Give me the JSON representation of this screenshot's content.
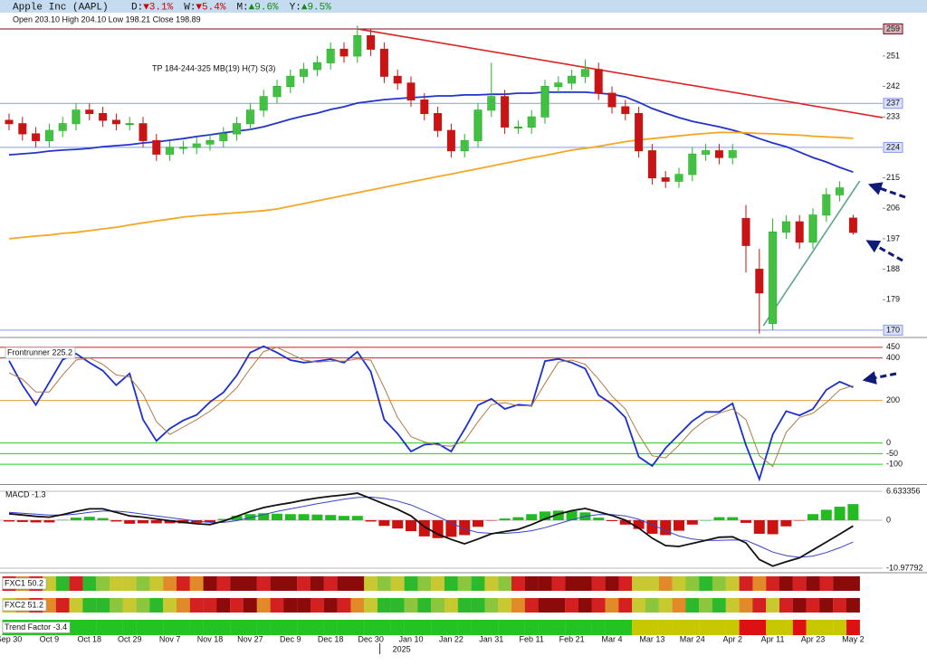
{
  "header": {
    "title": "Apple Inc (AAPL)",
    "changes": [
      {
        "label": "D:",
        "value": "▼3.1%",
        "color": "#cc0000"
      },
      {
        "label": "W:",
        "value": "▼5.4%",
        "color": "#cc0000"
      },
      {
        "label": "M:",
        "value": "▲9.6%",
        "color": "#118811"
      },
      {
        "label": "Y:",
        "value": "▲9.5%",
        "color": "#118811"
      }
    ]
  },
  "chart_data": [
    {
      "type": "candlestick",
      "info": "Open 203.10 High 204.10 Low 198.21 Close 198.89",
      "annotation": "TP 184-244-325 MB(19) H(7) S(3)",
      "year_label": "2025",
      "categories": [
        "Sep 30",
        null,
        null,
        "Oct 9",
        null,
        null,
        "Oct 18",
        null,
        null,
        "Oct 29",
        null,
        null,
        "Nov 7",
        null,
        null,
        "Nov 18",
        null,
        null,
        "Nov 27",
        null,
        null,
        "Dec 9",
        null,
        null,
        "Dec 18",
        null,
        null,
        "Dec 30",
        null,
        null,
        "Jan 10",
        null,
        null,
        "Jan 22",
        null,
        null,
        "Jan 31",
        null,
        null,
        "Feb 11",
        null,
        null,
        "Feb 21",
        null,
        null,
        "Mar 4",
        null,
        null,
        "Mar 13",
        null,
        null,
        "Mar 24",
        null,
        null,
        "Apr 2",
        null,
        null,
        "Apr 11",
        null,
        null,
        "Apr 23",
        null,
        null,
        "May 2"
      ],
      "open": [
        232,
        231,
        228,
        226,
        229,
        231,
        235,
        234,
        232,
        231,
        231,
        226,
        222,
        224,
        224,
        225,
        226,
        228,
        231,
        235,
        239,
        242,
        245,
        247,
        249,
        253,
        251,
        257,
        253,
        245,
        243,
        238,
        234,
        229,
        223,
        226,
        235,
        239,
        230,
        230,
        233,
        242,
        243,
        245,
        247,
        240,
        236,
        234,
        223,
        215,
        214,
        216,
        222,
        223,
        221,
        203,
        188,
        172,
        199,
        202,
        196,
        204,
        210,
        203.1
      ],
      "high": [
        234,
        233,
        230,
        231,
        233,
        237,
        237,
        236,
        234,
        233,
        233,
        228,
        226,
        226,
        227,
        228,
        230,
        233,
        237,
        241,
        244,
        247,
        249,
        251,
        255,
        255,
        260,
        259,
        255,
        247,
        245,
        240,
        236,
        231,
        228,
        237,
        249,
        241,
        232,
        235,
        244,
        245,
        247,
        250,
        249,
        242,
        238,
        236,
        225,
        217,
        218,
        224,
        225,
        225,
        225,
        207,
        194,
        203,
        204,
        204,
        206,
        212,
        214,
        204.1
      ],
      "low": [
        229,
        226,
        224,
        224,
        227,
        229,
        232,
        230,
        229,
        229,
        224,
        220,
        220,
        222,
        222,
        223,
        224,
        226,
        229,
        233,
        237,
        240,
        243,
        245,
        247,
        249,
        249,
        251,
        243,
        241,
        236,
        232,
        227,
        221,
        221,
        224,
        233,
        228,
        228,
        228,
        231,
        240,
        241,
        243,
        238,
        234,
        232,
        221,
        213,
        212,
        212,
        214,
        220,
        219,
        219,
        187,
        169,
        170,
        197,
        194,
        194,
        202,
        208,
        198.21
      ],
      "close": [
        231,
        228,
        226,
        229,
        231,
        235,
        234,
        232,
        231,
        231,
        226,
        222,
        224,
        224,
        225,
        226,
        228,
        231,
        235,
        239,
        242,
        245,
        247,
        249,
        253,
        251,
        257,
        253,
        245,
        243,
        238,
        234,
        229,
        223,
        226,
        235,
        239,
        230,
        230,
        233,
        242,
        243,
        245,
        247,
        240,
        236,
        234,
        223,
        215,
        214,
        216,
        222,
        223,
        221,
        223,
        195,
        181,
        199,
        202,
        196,
        204,
        210,
        212,
        198.89
      ],
      "up_color": "#22b422",
      "down_color": "#c81414",
      "overlays": [
        {
          "color": "#2233cc",
          "values": [
            221.8,
            222.1,
            222.4,
            222.9,
            223.2,
            223.4,
            223.7,
            224.2,
            224.5,
            224.8,
            225.3,
            225.6,
            226.1,
            226.6,
            227.2,
            227.7,
            228.3,
            228.8,
            229.3,
            230.1,
            231.2,
            232.3,
            233.3,
            234.1,
            235.2,
            236,
            237.1,
            237.6,
            238.1,
            238.4,
            238.7,
            238.9,
            239.2,
            239.2,
            239.5,
            239.5,
            239.7,
            239.7,
            240,
            240,
            240.3,
            240.3,
            240.3,
            240.3,
            240,
            239.7,
            238.9,
            237.3,
            235.5,
            234.1,
            232.8,
            231.7,
            230.9,
            230.1,
            229.1,
            228,
            226.6,
            225.3,
            224.2,
            222.6,
            221,
            219.7,
            218.1,
            216.7
          ]
        },
        {
          "color": "#f5a623",
          "values": [
            197,
            197.4,
            197.8,
            198.1,
            198.6,
            198.9,
            199.4,
            199.9,
            200.4,
            201.1,
            201.7,
            202.3,
            202.8,
            203.4,
            203.8,
            204.1,
            204.4,
            204.7,
            205,
            205.3,
            205.8,
            206.6,
            207.4,
            208.2,
            209,
            209.8,
            210.6,
            211.4,
            212.2,
            213,
            213.8,
            214.6,
            215.4,
            216.1,
            216.9,
            217.7,
            218.5,
            219.3,
            220.1,
            220.9,
            221.6,
            222.4,
            223.2,
            223.7,
            224.3,
            225,
            225.7,
            226.2,
            226.6,
            227,
            227.4,
            227.8,
            228.1,
            228.4,
            228.4,
            228.3,
            228.1,
            228,
            227.8,
            227.6,
            227.3,
            227.1,
            226.9,
            226.7
          ]
        }
      ],
      "trendlines": [
        {
          "from": [
            26,
            259
          ],
          "to": [
            65.2,
            232.8
          ],
          "color": "#dd2222"
        },
        {
          "from": [
            56.3,
            171.3
          ],
          "to": [
            63.5,
            214.1
          ],
          "color": "#5aa58a"
        }
      ],
      "ylim": [
        168.1,
        263.8
      ],
      "yticks": [
        259,
        251,
        242,
        237,
        233,
        224,
        215,
        206,
        197,
        188,
        179,
        170
      ],
      "tick_lines": [
        "#7a0a1e",
        null,
        null,
        "#8899ee",
        null,
        "#8899ee",
        null,
        null,
        null,
        null,
        null,
        "#8899ee"
      ]
    },
    {
      "type": "line",
      "label": "Frontrunner 225.2",
      "series": [
        {
          "color": "#1a2fd0",
          "values": [
            387,
            272,
            179,
            285,
            392,
            420,
            378,
            340,
            272,
            327,
            110,
            10,
            68,
            106,
            132,
            193,
            238,
            318,
            425,
            455,
            425,
            390,
            378,
            385,
            394,
            378,
            429,
            336,
            110,
            44,
            -40,
            -8,
            -3,
            -40,
            65,
            178,
            208,
            160,
            180,
            175,
            385,
            395,
            378,
            350,
            225,
            183,
            120,
            -65,
            -108,
            -24,
            40,
            103,
            146,
            146,
            186,
            -10,
            -170,
            40,
            150,
            130,
            160,
            250,
            288,
            262
          ]
        },
        {
          "color": "#b07a4a",
          "values": [
            330,
            300,
            240,
            240,
            320,
            390,
            400,
            370,
            320,
            310,
            230,
            100,
            40,
            75,
            110,
            150,
            200,
            260,
            350,
            430,
            450,
            420,
            390,
            380,
            385,
            385,
            395,
            390,
            260,
            120,
            30,
            5,
            -10,
            -15,
            10,
            100,
            180,
            190,
            175,
            175,
            280,
            380,
            390,
            370,
            300,
            220,
            160,
            40,
            -60,
            -70,
            -10,
            60,
            110,
            140,
            160,
            110,
            -60,
            -110,
            50,
            120,
            140,
            190,
            250,
            270
          ]
        }
      ],
      "ylim": [
        -193,
        492
      ],
      "yticks": [
        450,
        400,
        200,
        0,
        -50,
        -100
      ],
      "tick_lines": [
        "#cc2222",
        "#cc2222",
        "#e0a030",
        "#22cc22",
        "#22cc22",
        "#22cc22"
      ]
    },
    {
      "type": "macd",
      "label": "MACD -1.3",
      "macd": [
        1.5,
        1.2,
        0.9,
        0.7,
        1.3,
        2.0,
        2.6,
        2.6,
        1.8,
        1.0,
        0.7,
        0.3,
        -0.1,
        -0.5,
        -0.8,
        -1.0,
        -0.2,
        0.9,
        2.0,
        2.9,
        3.5,
        4.0,
        4.6,
        5.1,
        5.5,
        5.8,
        6.2,
        5.0,
        3.7,
        2.5,
        1.0,
        -1.5,
        -3.2,
        -4.4,
        -5.4,
        -4.3,
        -3.1,
        -2.6,
        -2.1,
        -1.0,
        0.3,
        1.4,
        2.2,
        2.7,
        1.9,
        1.1,
        0.0,
        -1.8,
        -4.1,
        -5.8,
        -6.0,
        -5.3,
        -4.6,
        -3.9,
        -3.8,
        -5.2,
        -9.0,
        -10.5,
        -9.5,
        -8.6,
        -6.8,
        -5.0,
        -3.2,
        -1.3
      ],
      "signal": [
        1.8,
        1.6,
        1.4,
        1.2,
        1.2,
        1.4,
        1.8,
        2.1,
        2.1,
        1.8,
        1.4,
        1.0,
        0.6,
        0.2,
        -0.2,
        -0.5,
        -0.5,
        -0.1,
        0.6,
        1.3,
        2.0,
        2.6,
        3.2,
        3.8,
        4.3,
        4.8,
        5.2,
        5.3,
        5.0,
        4.4,
        3.5,
        2.2,
        0.9,
        -0.6,
        -2.0,
        -2.8,
        -3.0,
        -3.0,
        -2.8,
        -2.4,
        -1.7,
        -0.8,
        0.1,
        0.9,
        1.3,
        1.3,
        1.0,
        0.2,
        -1.0,
        -2.4,
        -3.6,
        -4.3,
        -4.6,
        -4.6,
        -4.5,
        -4.6,
        -5.9,
        -7.3,
        -8.1,
        -8.5,
        -8.2,
        -7.4,
        -6.3,
        -5.0
      ],
      "histogram": [
        -0.3,
        -0.4,
        -0.5,
        -0.5,
        0.1,
        0.6,
        0.8,
        0.5,
        -0.3,
        -0.8,
        -0.7,
        -0.7,
        -0.7,
        -0.7,
        -0.6,
        -0.5,
        0.3,
        1.0,
        1.4,
        1.6,
        1.5,
        1.4,
        1.4,
        1.3,
        1.2,
        1.0,
        1.0,
        -0.3,
        -1.3,
        -1.9,
        -2.5,
        -3.7,
        -4.1,
        -3.8,
        -3.4,
        -1.5,
        -0.1,
        0.4,
        0.7,
        1.4,
        2.0,
        2.2,
        2.1,
        1.8,
        0.6,
        -0.2,
        -1.0,
        -2.0,
        -3.1,
        -3.4,
        -2.4,
        -1.0,
        0.0,
        0.7,
        0.7,
        -0.6,
        -3.1,
        -3.2,
        -1.4,
        -0.1,
        1.4,
        2.4,
        3.1,
        3.7
      ],
      "macd_color": "#111111",
      "signal_color": "#3344cc",
      "pos_color": "#22bb22",
      "neg_color": "#cc1111",
      "ylim": [
        -11.81,
        8.08
      ],
      "yticks": [
        6.633356,
        0,
        -10.97792
      ]
    },
    {
      "type": "heatmap",
      "rows": [
        {
          "label": "FXC1 50.2",
          "colors": [
            "#d42020",
            "#e08a2a",
            "#d42020",
            "#c8c832",
            "#2db82d",
            "#d42020",
            "#2db82d",
            "#8cc63f",
            "#c8c832",
            "#c8c832",
            "#8cc63f",
            "#c8c832",
            "#e08a2a",
            "#d42020",
            "#e08a2a",
            "#8b0a0a",
            "#d42020",
            "#8b0a0a",
            "#8b0a0a",
            "#d42020",
            "#8b0a0a",
            "#8b0a0a",
            "#d42020",
            "#8b0a0a",
            "#d42020",
            "#8b0a0a",
            "#8b0a0a",
            "#c8c832",
            "#8cc63f",
            "#c8c832",
            "#2db82d",
            "#8cc63f",
            "#c8c832",
            "#2db82d",
            "#8cc63f",
            "#2db82d",
            "#c8c832",
            "#8cc63f",
            "#d42020",
            "#8b0a0a",
            "#8b0a0a",
            "#d42020",
            "#8b0a0a",
            "#8b0a0a",
            "#d42020",
            "#8b0a0a",
            "#d42020",
            "#c8c832",
            "#c8c832",
            "#e08a2a",
            "#c8c832",
            "#8cc63f",
            "#2db82d",
            "#8cc63f",
            "#c8c832",
            "#d42020",
            "#e08a2a",
            "#d42020",
            "#8b0a0a",
            "#d42020",
            "#8b0a0a",
            "#d42020",
            "#8b0a0a",
            "#8b0a0a"
          ]
        },
        {
          "label": "FXC2 51.2",
          "colors": [
            "#c8c832",
            "#e08a2a",
            "#d42020",
            "#e08a2a",
            "#d42020",
            "#c8c832",
            "#2db82d",
            "#2db82d",
            "#8cc63f",
            "#c8c832",
            "#8cc63f",
            "#2db82d",
            "#c8c832",
            "#e08a2a",
            "#d42020",
            "#d42020",
            "#8b0a0a",
            "#d42020",
            "#8b0a0a",
            "#e08a2a",
            "#d42020",
            "#8b0a0a",
            "#8b0a0a",
            "#d42020",
            "#8b0a0a",
            "#d42020",
            "#e08a2a",
            "#c8c832",
            "#2db82d",
            "#2db82d",
            "#8cc63f",
            "#2db82d",
            "#8cc63f",
            "#c8c832",
            "#2db82d",
            "#2db82d",
            "#8cc63f",
            "#c8c832",
            "#e08a2a",
            "#d42020",
            "#8b0a0a",
            "#8b0a0a",
            "#d42020",
            "#8b0a0a",
            "#d42020",
            "#e08a2a",
            "#d42020",
            "#c8c832",
            "#8cc63f",
            "#c8c832",
            "#e08a2a",
            "#2db82d",
            "#8cc63f",
            "#2db82d",
            "#c8c832",
            "#e08a2a",
            "#d42020",
            "#c8c832",
            "#d42020",
            "#8b0a0a",
            "#d42020",
            "#8b0a0a",
            "#d42020",
            "#8b0a0a"
          ]
        },
        {
          "label": "Trend Factor -3.4",
          "colors": [
            "#22c322",
            "#22c322",
            "#22c322",
            "#22c322",
            "#22c322",
            "#22c322",
            "#22c322",
            "#22c322",
            "#22c322",
            "#22c322",
            "#22c322",
            "#22c322",
            "#22c322",
            "#22c322",
            "#22c322",
            "#22c322",
            "#22c322",
            "#22c322",
            "#22c322",
            "#22c322",
            "#22c322",
            "#22c322",
            "#22c322",
            "#22c322",
            "#22c322",
            "#22c322",
            "#22c322",
            "#22c322",
            "#22c322",
            "#22c322",
            "#22c322",
            "#22c322",
            "#22c322",
            "#22c322",
            "#22c322",
            "#22c322",
            "#22c322",
            "#22c322",
            "#22c322",
            "#22c322",
            "#22c322",
            "#22c322",
            "#22c322",
            "#22c322",
            "#22c322",
            "#22c322",
            "#22c322",
            "#c8c800",
            "#c8c800",
            "#c8c800",
            "#c8c800",
            "#c8c800",
            "#c8c800",
            "#c8c800",
            "#c8c800",
            "#dd1111",
            "#dd1111",
            "#c8c800",
            "#c8c800",
            "#dd1111",
            "#c8c800",
            "#c8c800",
            "#c8c800",
            "#dd1111"
          ]
        }
      ]
    }
  ]
}
